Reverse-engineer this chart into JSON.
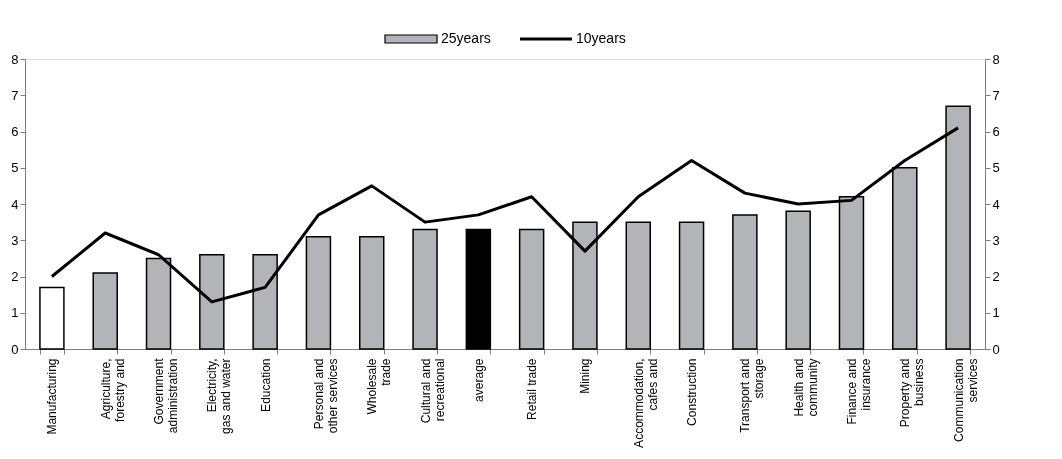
{
  "chart_data": {
    "type": "bar",
    "categories": [
      "Manufacturing",
      "Agriculture, forestry and",
      "Government administration",
      "Electricity, gas and water",
      "Education",
      "Personal and other services",
      "Wholesale trade",
      "Cultural and recreational",
      "average",
      "Retail trade",
      "Mining",
      "Accommodation, cafes and",
      "Construction",
      "Transport and storage",
      "Health and community",
      "Finance and insurance",
      "Property and business",
      "Communication services"
    ],
    "series": [
      {
        "name": "25years",
        "color": "#b3b4b8",
        "colors": [
          "#ffffff",
          "#b3b4b8",
          "#b3b4b8",
          "#b3b4b8",
          "#b3b4b8",
          "#b3b4b8",
          "#b3b4b8",
          "#b3b4b8",
          "#000000",
          "#b3b4b8",
          "#b3b4b8",
          "#b3b4b8",
          "#b3b4b8",
          "#b3b4b8",
          "#b3b4b8",
          "#b3b4b8",
          "#b3b4b8",
          "#b3b4b8"
        ],
        "values": [
          1.7,
          2.1,
          2.5,
          2.6,
          2.6,
          3.1,
          3.1,
          3.3,
          3.3,
          3.3,
          3.5,
          3.5,
          3.5,
          3.7,
          3.8,
          4.2,
          5.0,
          6.7
        ]
      },
      {
        "name": "10years",
        "type": "line",
        "axis": "y2",
        "color": "#000000",
        "values": [
          2.0,
          3.2,
          2.6,
          1.3,
          1.7,
          3.7,
          4.5,
          3.5,
          3.7,
          4.2,
          2.7,
          4.2,
          5.2,
          4.3,
          4.0,
          4.1,
          5.2,
          6.1
        ]
      }
    ],
    "ylim": [
      0,
      8
    ],
    "yticks": [
      0,
      1,
      2,
      3,
      4,
      5,
      6,
      7,
      8
    ],
    "y2lim": [
      0,
      8
    ],
    "y2ticks": [
      0,
      1,
      2,
      3,
      4,
      5,
      6,
      7,
      8
    ],
    "grid": false,
    "legend": "top",
    "line_style": "solid",
    "marker": "none"
  }
}
